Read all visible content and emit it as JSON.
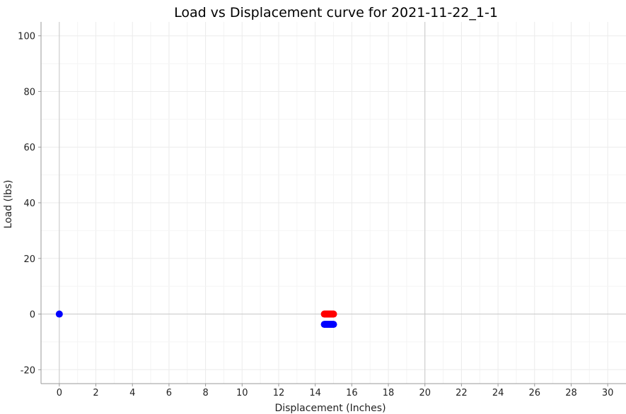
{
  "chart_data": {
    "type": "scatter",
    "title": "Load vs Displacement curve for 2021-11-22_1-1",
    "xlabel": "Displacement (Inches)",
    "ylabel": "Load (lbs)",
    "xlim": [
      -1,
      31
    ],
    "ylim": [
      -25,
      105
    ],
    "xticks": [
      0,
      2,
      4,
      6,
      8,
      10,
      12,
      14,
      16,
      18,
      20,
      22,
      24,
      26,
      28,
      30
    ],
    "yticks": [
      -20,
      0,
      20,
      40,
      60,
      80,
      100
    ],
    "xtick_labels": [
      "0",
      "2",
      "4",
      "6",
      "8",
      "10",
      "12",
      "14",
      "16",
      "18",
      "20",
      "22",
      "24",
      "26",
      "28",
      "30"
    ],
    "ytick_labels": [
      "-20",
      "0",
      "20",
      "40",
      "60",
      "80",
      "100"
    ],
    "grid": true,
    "reference_lines": {
      "x": 20,
      "y": 0
    },
    "series": [
      {
        "color": "#0000ff",
        "points": [
          [
            0,
            0
          ],
          [
            14.5,
            -3.7
          ],
          [
            14.55,
            -3.7
          ],
          [
            14.6,
            -3.7
          ],
          [
            14.65,
            -3.7
          ],
          [
            14.7,
            -3.7
          ],
          [
            14.75,
            -3.7
          ],
          [
            14.8,
            -3.7
          ],
          [
            14.85,
            -3.7
          ],
          [
            14.9,
            -3.7
          ],
          [
            14.95,
            -3.7
          ],
          [
            15.0,
            -3.7
          ]
        ]
      },
      {
        "color": "#ff0000",
        "points": [
          [
            14.5,
            0
          ],
          [
            14.55,
            0
          ],
          [
            14.6,
            0
          ],
          [
            14.65,
            0
          ],
          [
            14.7,
            0
          ],
          [
            14.75,
            0
          ],
          [
            14.8,
            0
          ],
          [
            14.85,
            0
          ],
          [
            14.9,
            0
          ],
          [
            14.95,
            0
          ],
          [
            15.0,
            0
          ]
        ]
      }
    ]
  }
}
